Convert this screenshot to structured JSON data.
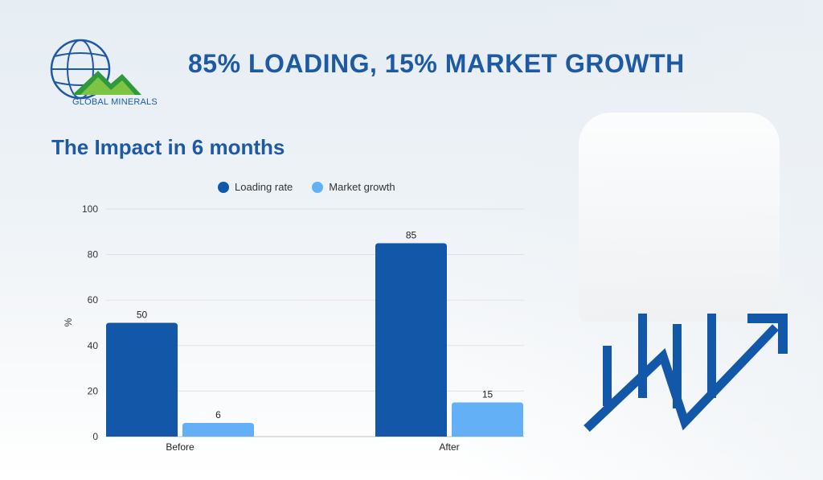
{
  "header": {
    "logo_text": "GLOBAL MINERALS",
    "title": "85% LOADING, 15% MARKET GROWTH"
  },
  "section": {
    "subtitle": "The Impact in 6 months"
  },
  "colors": {
    "loading_rate": "#1358a8",
    "market_growth": "#64b0f6",
    "title": "#1e5aa4"
  },
  "chart_data": {
    "type": "bar",
    "categories": [
      "Before",
      "After"
    ],
    "series": [
      {
        "name": "Loading rate",
        "values": [
          50,
          85
        ],
        "labels": [
          "50",
          "85"
        ]
      },
      {
        "name": "Market growth",
        "values": [
          6,
          15
        ],
        "labels": [
          "6",
          "15"
        ]
      }
    ],
    "title": "",
    "xlabel": "",
    "ylabel": "%",
    "ylim": [
      0,
      100
    ],
    "yticks": [
      "0",
      "20",
      "40",
      "60",
      "80",
      "100"
    ],
    "grid": true,
    "legend": "top"
  },
  "decor": {
    "trend_icon": "growth-arrow-icon"
  }
}
